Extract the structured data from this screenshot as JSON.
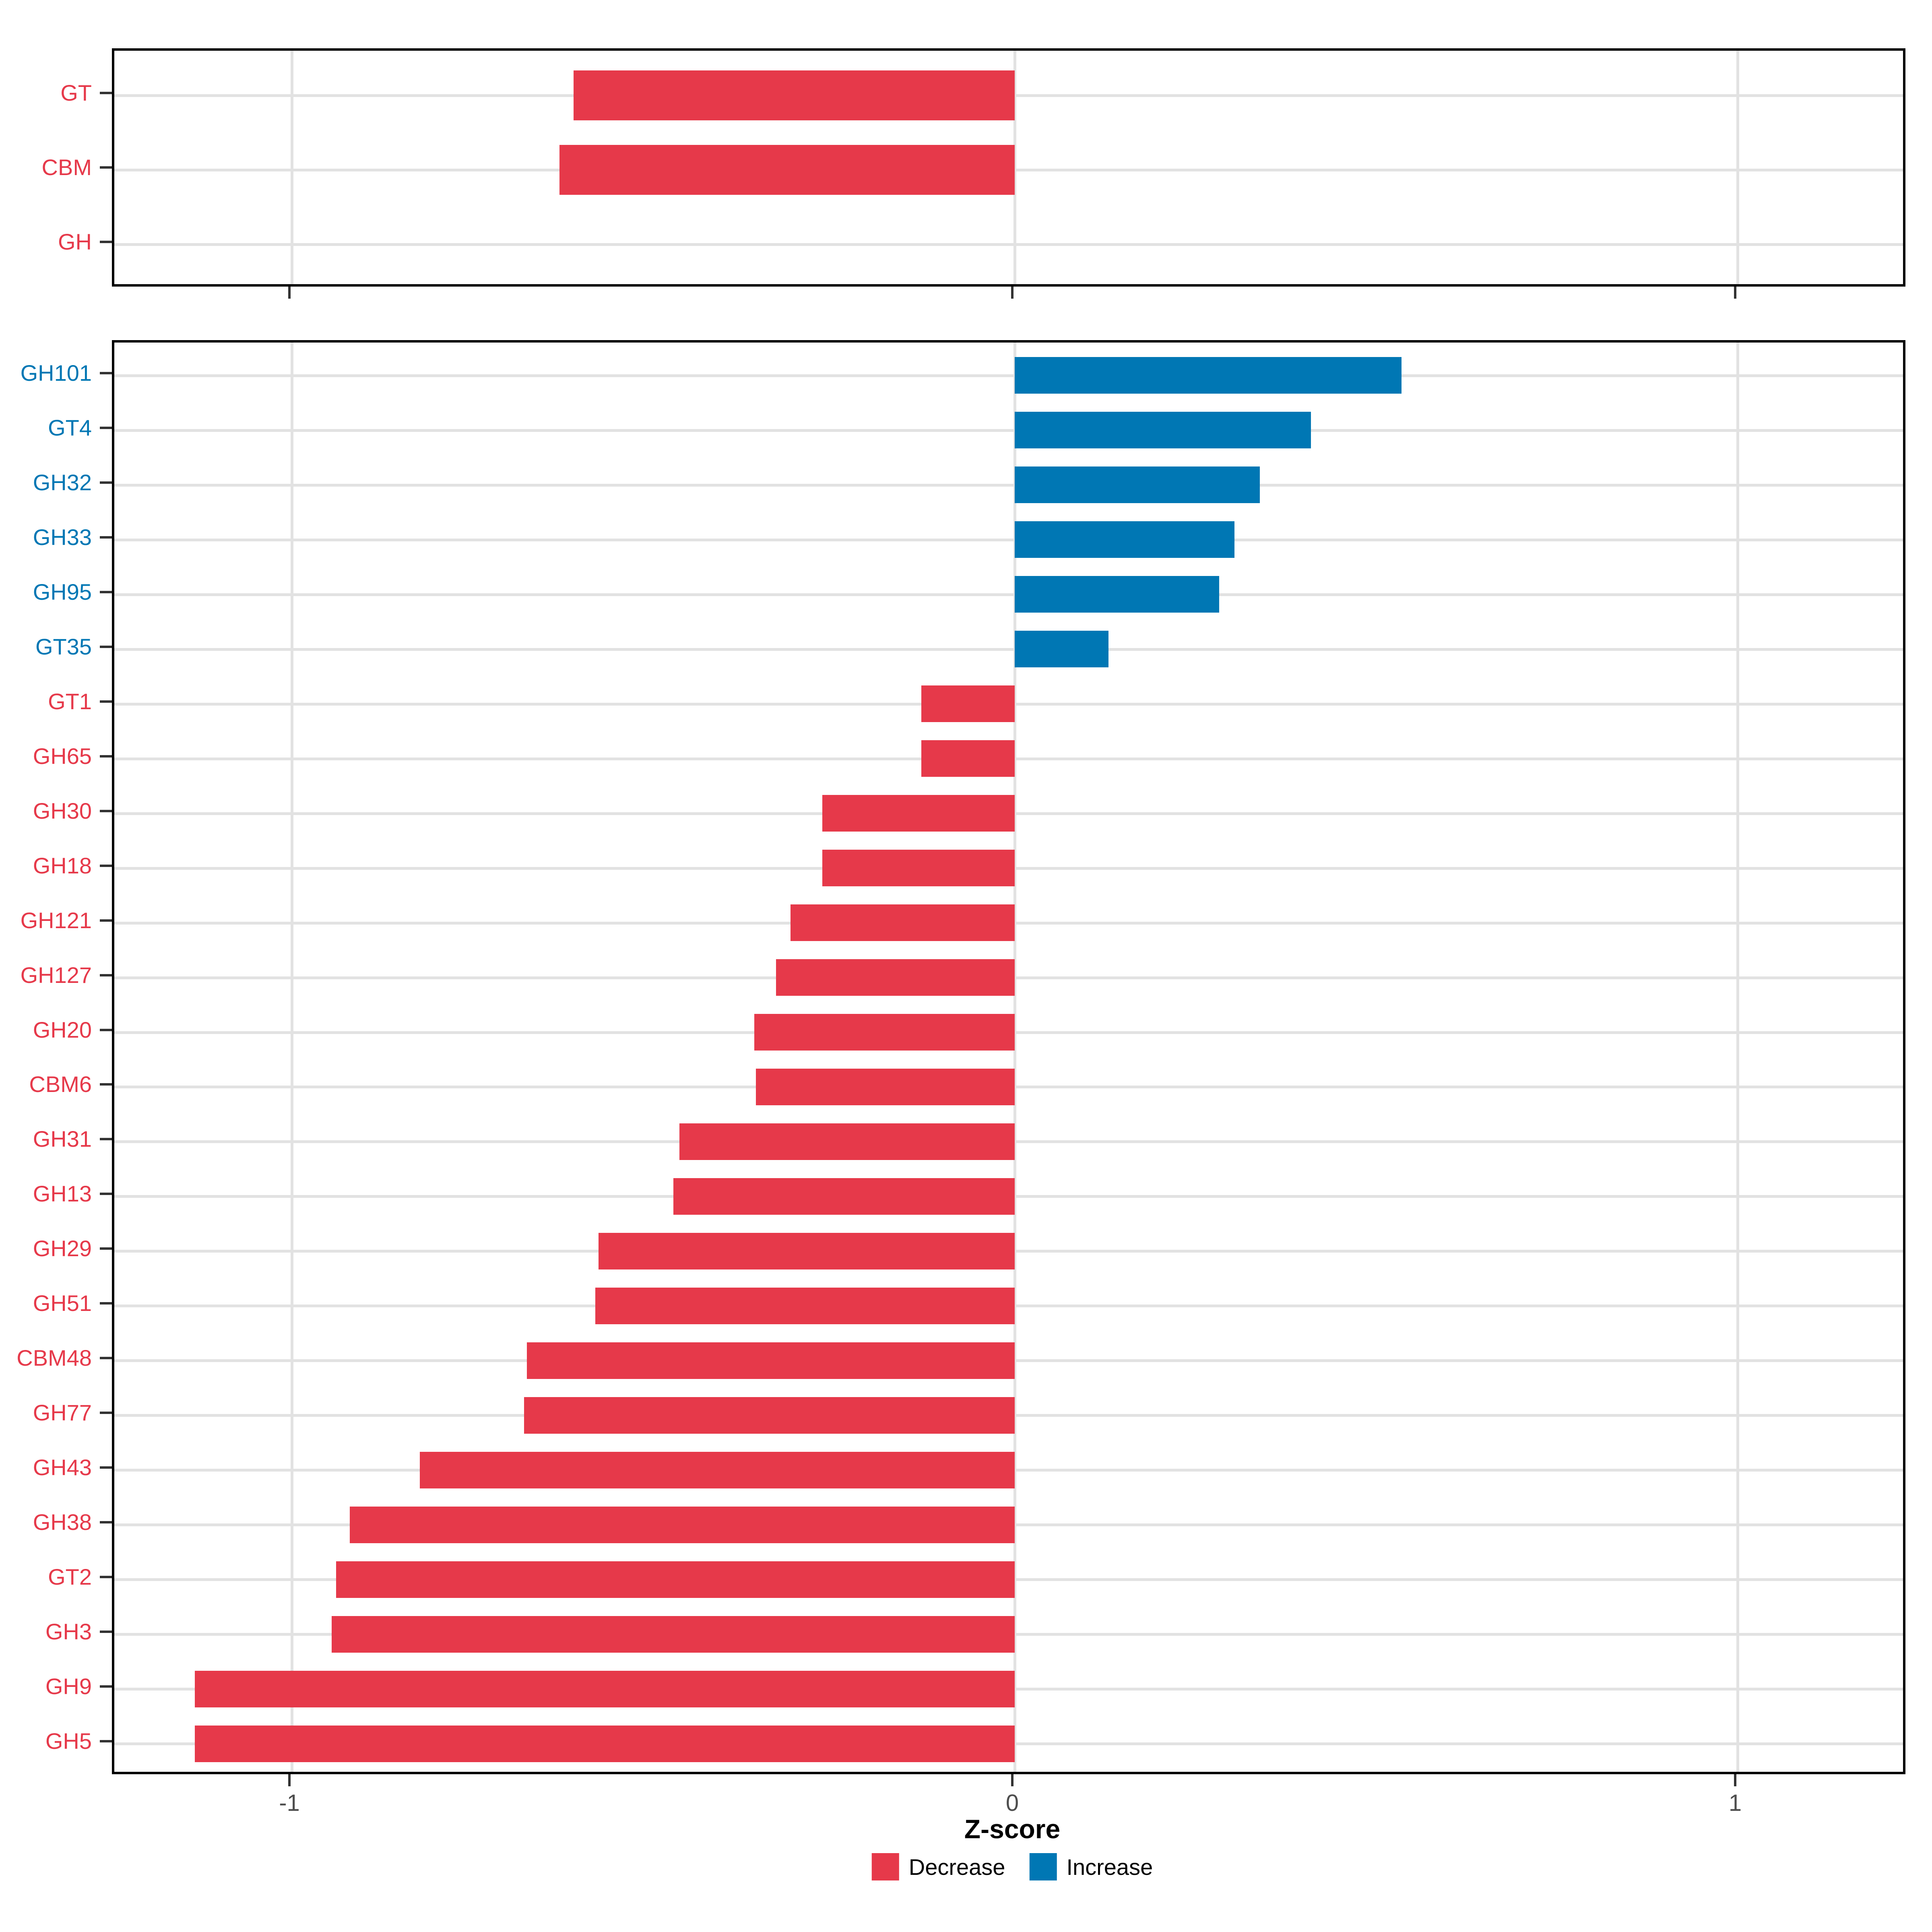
{
  "axis": {
    "title": "Z-score",
    "ticks": [
      -1,
      0,
      1
    ],
    "tick_labels": [
      "-1",
      "0",
      "1"
    ]
  },
  "legend": {
    "items": [
      {
        "label": "Decrease",
        "color": "#E6394A"
      },
      {
        "label": "Increase",
        "color": "#0077B4"
      }
    ]
  },
  "colors": {
    "decrease": "#E6394A",
    "increase": "#0077B4",
    "grid": "#E2E2E2",
    "tick_text": "#4D4D4D",
    "panel_border": "#000000",
    "background": "#FFFFFF"
  },
  "chart_data": [
    {
      "panel": "top",
      "type": "bar",
      "orientation": "horizontal",
      "xlabel": "Z-score",
      "xlim": [
        -1.25,
        1.24
      ],
      "grid": true,
      "categories": [
        "GT",
        "CBM",
        "GH"
      ],
      "values": [
        -0.61,
        -0.63,
        0
      ],
      "groups": [
        "Decrease",
        "Decrease",
        "Decrease"
      ]
    },
    {
      "panel": "bottom",
      "type": "bar",
      "orientation": "horizontal",
      "xlabel": "Z-score",
      "xlim": [
        -1.25,
        1.24
      ],
      "grid": true,
      "legend_position": "bottom",
      "categories": [
        "GH101",
        "GT4",
        "GH32",
        "GH33",
        "GH95",
        "GT35",
        "GT1",
        "GH65",
        "GH30",
        "GH18",
        "GH121",
        "GH127",
        "GH20",
        "CBM6",
        "GH31",
        "GH13",
        "GH29",
        "GH51",
        "CBM48",
        "GH77",
        "GH43",
        "GH38",
        "GT2",
        "GH3",
        "GH9",
        "GH5"
      ],
      "values": [
        0.535,
        0.41,
        0.339,
        0.304,
        0.283,
        0.13,
        -0.129,
        -0.129,
        -0.266,
        -0.266,
        -0.31,
        -0.33,
        -0.36,
        -0.358,
        -0.464,
        -0.472,
        -0.576,
        -0.58,
        -0.675,
        -0.679,
        -0.823,
        -0.92,
        -0.939,
        -0.945,
        -1.134,
        -1.134
      ],
      "groups": [
        "Increase",
        "Increase",
        "Increase",
        "Increase",
        "Increase",
        "Increase",
        "Decrease",
        "Decrease",
        "Decrease",
        "Decrease",
        "Decrease",
        "Decrease",
        "Decrease",
        "Decrease",
        "Decrease",
        "Decrease",
        "Decrease",
        "Decrease",
        "Decrease",
        "Decrease",
        "Decrease",
        "Decrease",
        "Decrease",
        "Decrease",
        "Decrease",
        "Decrease"
      ]
    }
  ]
}
